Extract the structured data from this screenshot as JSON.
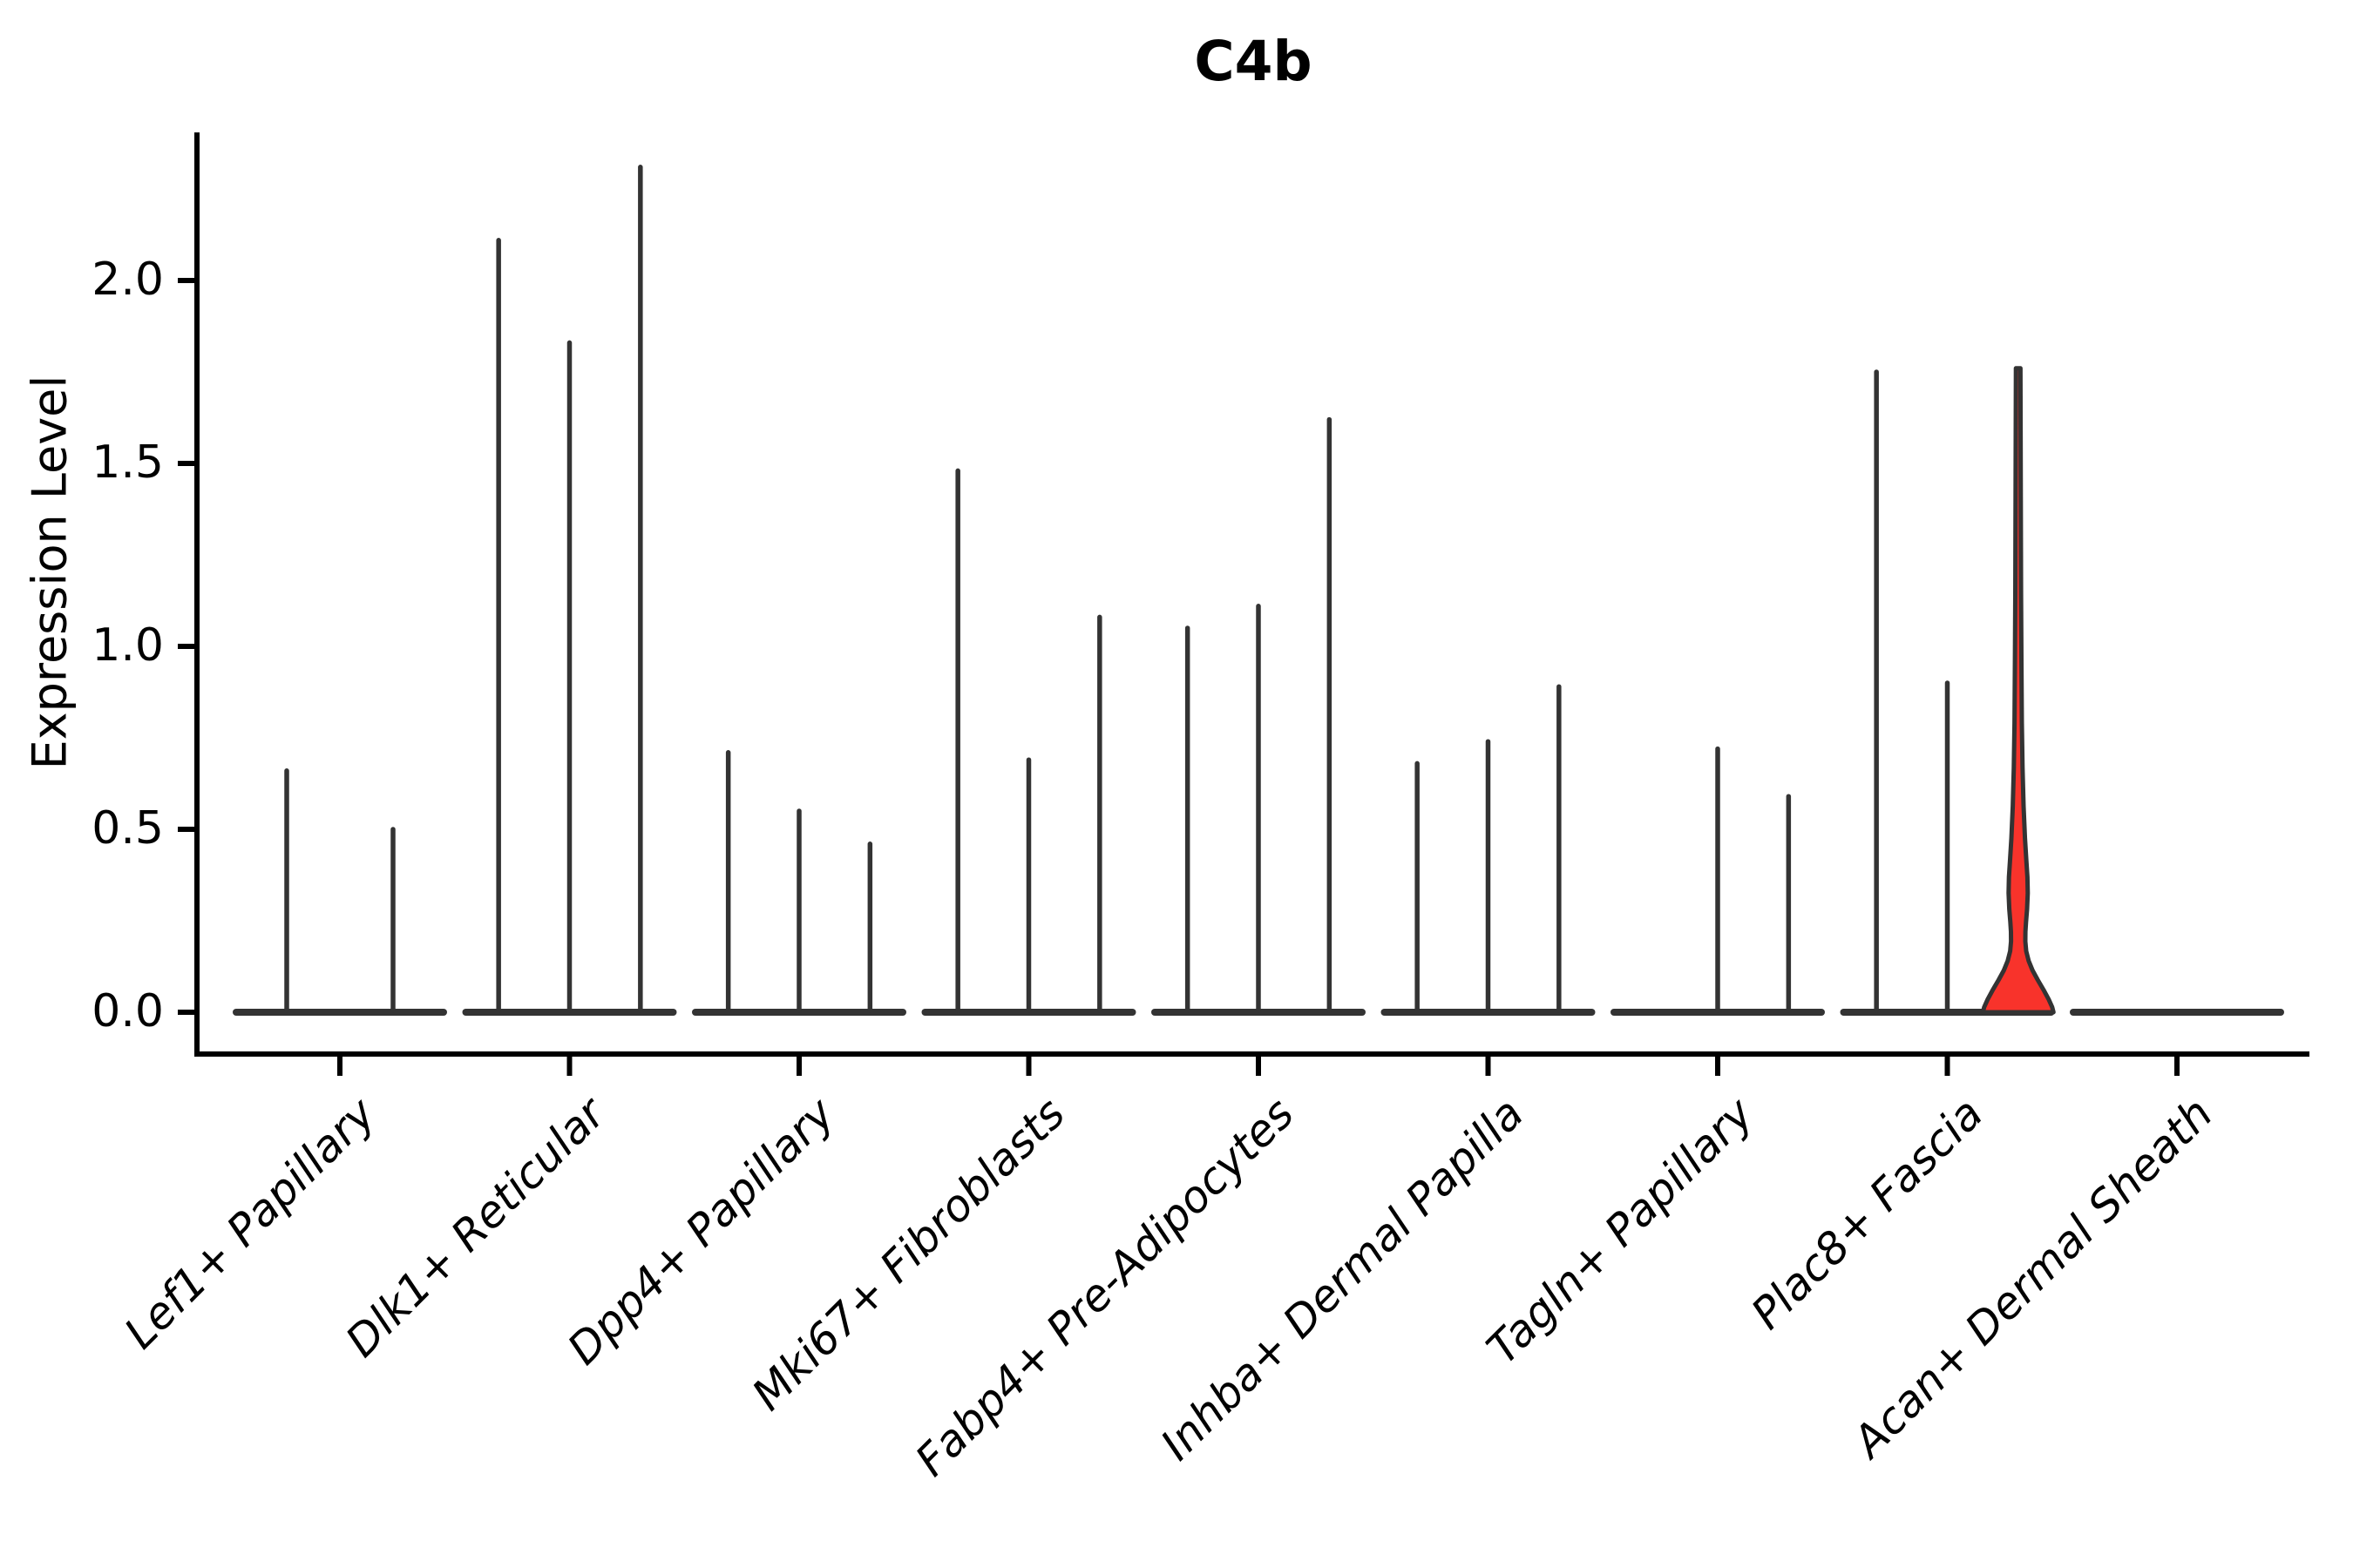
{
  "chart_data": {
    "type": "violin",
    "title": "C4b",
    "ylabel": "Expression Level",
    "xlabel": "",
    "y_ticks": [
      {
        "value": 0.0,
        "label": "0.0"
      },
      {
        "value": 0.5,
        "label": "0.5"
      },
      {
        "value": 1.0,
        "label": "1.0"
      },
      {
        "value": 1.5,
        "label": "1.5"
      },
      {
        "value": 2.0,
        "label": "2.0"
      }
    ],
    "ylim": [
      -0.12,
      2.4
    ],
    "grid": false,
    "legend": "none",
    "categories": [
      "Lef1+ Papillary",
      "Dlk1+ Reticular",
      "Dpp4+ Papillary",
      "Mki67+ Fibroblasts",
      "Fabp4+ Pre-Adipocytes",
      "Inhba+ Dermal Papilla",
      "Tagln+ Papillary",
      "Plac8+ Fascia",
      "Acan+ Dermal Sheath"
    ],
    "groups": [
      {
        "category": "Lef1+ Papillary",
        "violins": [
          {
            "max": 0.66
          },
          {
            "max": 0.5
          }
        ]
      },
      {
        "category": "Dlk1+ Reticular",
        "violins": [
          {
            "max": 2.11
          },
          {
            "max": 1.83
          },
          {
            "max": 2.31
          }
        ]
      },
      {
        "category": "Dpp4+ Papillary",
        "violins": [
          {
            "max": 0.71
          },
          {
            "max": 0.55
          },
          {
            "max": 0.46
          }
        ]
      },
      {
        "category": "Mki67+ Fibroblasts",
        "violins": [
          {
            "max": 1.48
          },
          {
            "max": 0.69
          },
          {
            "max": 1.08
          }
        ]
      },
      {
        "category": "Fabp4+ Pre-Adipocytes",
        "violins": [
          {
            "max": 1.05
          },
          {
            "max": 1.11
          },
          {
            "max": 1.62
          }
        ]
      },
      {
        "category": "Inhba+ Dermal Papilla",
        "violins": [
          {
            "max": 0.68
          },
          {
            "max": 0.74
          },
          {
            "max": 0.89
          }
        ]
      },
      {
        "category": "Tagln+ Papillary",
        "violins": [
          {
            "max": 0.0
          },
          {
            "max": 0.72
          },
          {
            "max": 0.59
          }
        ]
      },
      {
        "category": "Plac8+ Fascia",
        "violins": [
          {
            "max": 1.75
          },
          {
            "max": 0.9
          },
          {
            "max": 1.76,
            "highlighted": true
          }
        ]
      },
      {
        "category": "Acan+ Dermal Sheath",
        "violins": [
          {
            "max": 0.0
          },
          {
            "max": 0.0
          },
          {
            "max": 0.0
          }
        ]
      }
    ],
    "colors": {
      "violin_outline": "#333333",
      "highlight_fill": "#F8332B",
      "axis": "#000000",
      "text": "#000000",
      "background": "#ffffff"
    }
  }
}
